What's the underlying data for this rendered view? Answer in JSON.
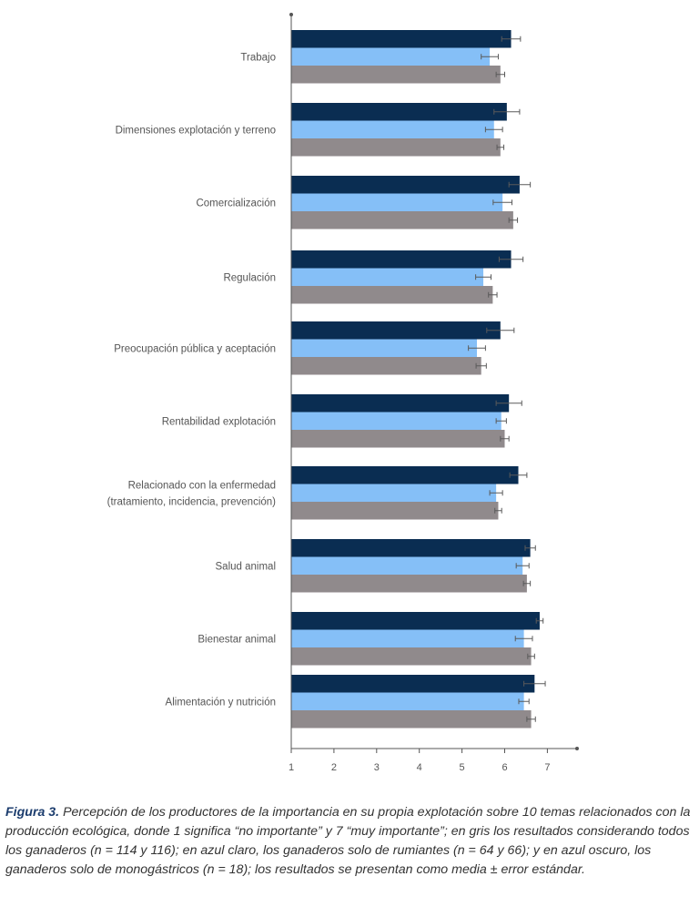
{
  "chart_data": {
    "type": "bar",
    "orientation": "horizontal",
    "categories": [
      [
        "Trabajo"
      ],
      [
        "Dimensiones explotación y terreno"
      ],
      [
        "Comercialización"
      ],
      [
        "Regulación"
      ],
      [
        "Preocupación pública y aceptación"
      ],
      [
        "Rentabilidad explotación"
      ],
      [
        "Relacionado con la enfermedad",
        "(tratamiento, incidencia, prevención)"
      ],
      [
        "Salud animal"
      ],
      [
        "Bienestar animal"
      ],
      [
        "Alimentación y nutrición"
      ]
    ],
    "series": [
      {
        "color": "#0a2d52",
        "values": [
          6.15,
          6.05,
          6.35,
          6.15,
          5.9,
          6.1,
          6.32,
          6.6,
          6.82,
          6.7
        ],
        "errors": [
          0.22,
          0.3,
          0.25,
          0.28,
          0.32,
          0.3,
          0.2,
          0.12,
          0.08,
          0.25
        ]
      },
      {
        "color": "#85bff7",
        "values": [
          5.65,
          5.75,
          5.95,
          5.5,
          5.35,
          5.92,
          5.8,
          6.42,
          6.45,
          6.45
        ],
        "errors": [
          0.2,
          0.2,
          0.22,
          0.18,
          0.2,
          0.12,
          0.15,
          0.15,
          0.2,
          0.12
        ]
      },
      {
        "color": "#908a8c",
        "values": [
          5.9,
          5.9,
          6.2,
          5.72,
          5.45,
          6.0,
          5.85,
          6.52,
          6.62,
          6.62
        ],
        "errors": [
          0.1,
          0.08,
          0.1,
          0.1,
          0.12,
          0.1,
          0.08,
          0.08,
          0.08,
          0.1
        ]
      }
    ],
    "xlim": [
      1,
      7.7
    ],
    "xticks": [
      "1",
      "2",
      "3",
      "4",
      "5",
      "6",
      "7"
    ],
    "grid": false,
    "legend": "none"
  },
  "caption": {
    "figure_label": "Figura 3.",
    "text": " Percepción de los productores de la importancia en su propia explotación sobre 10 temas relacionados con la producción ecológica, donde 1 significa “no importante” y 7 “muy importante”; en gris los resultados considerando todos los ganaderos (n = 114 y 116); en azul claro, los ganaderos solo de rumiantes (n = 64 y 66); y en azul oscuro, los ganaderos solo de monogástricos (n = 18); los resultados se presentan como media ± error estándar."
  }
}
